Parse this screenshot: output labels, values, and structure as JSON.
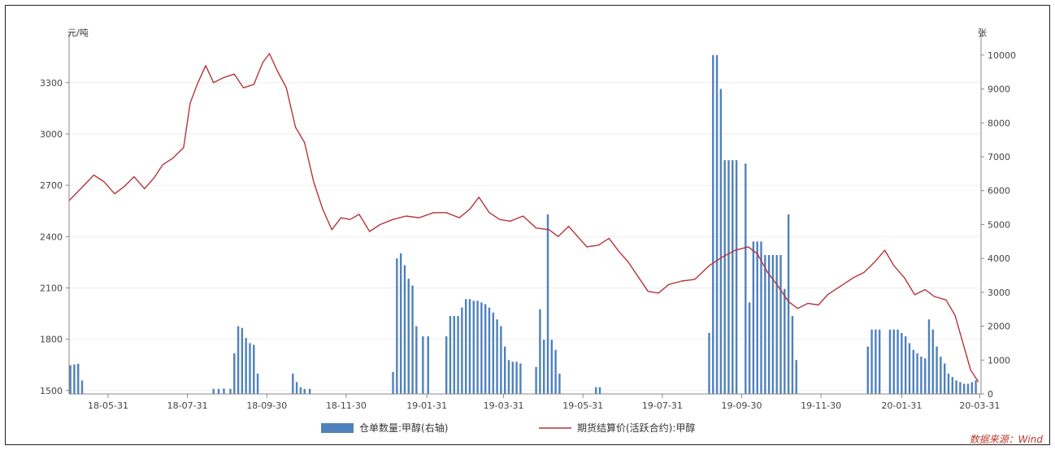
{
  "colors": {
    "price_line": "#b5343b",
    "bars": "#4f81bd",
    "axis": "#888888"
  },
  "chart_data": {
    "type": "bar+line",
    "left_axis": {
      "unit": "元/吨",
      "ticks": [
        1500,
        1800,
        2100,
        2400,
        2700,
        3000,
        3300
      ],
      "min": 1480,
      "max": 3560
    },
    "right_axis": {
      "unit": "张",
      "ticks": [
        0,
        1000,
        2000,
        3000,
        4000,
        5000,
        6000,
        7000,
        8000,
        9000,
        10000
      ],
      "min": 0,
      "max": 10500
    },
    "x_ticks": [
      "18-05-31",
      "18-07-31",
      "18-09-30",
      "18-11-30",
      "19-01-31",
      "19-03-31",
      "19-05-31",
      "19-07-31",
      "19-09-30",
      "19-11-30",
      "20-01-31",
      "20-03-31"
    ],
    "x_range": [
      "2018-05-01",
      "2020-04-01"
    ],
    "legend": [
      {
        "label": "仓单数量:甲醇(右轴)",
        "kind": "bar"
      },
      {
        "label": "期货结算价(活跃合约):甲醇",
        "kind": "line"
      }
    ],
    "source": "数据来源：Wind",
    "line_series": {
      "name": "期货结算价(活跃合约):甲醇",
      "points": [
        [
          "2018-05-01",
          2610
        ],
        [
          "2018-05-10",
          2680
        ],
        [
          "2018-05-20",
          2760
        ],
        [
          "2018-05-28",
          2720
        ],
        [
          "2018-06-05",
          2650
        ],
        [
          "2018-06-12",
          2690
        ],
        [
          "2018-06-20",
          2750
        ],
        [
          "2018-06-28",
          2680
        ],
        [
          "2018-07-05",
          2740
        ],
        [
          "2018-07-12",
          2820
        ],
        [
          "2018-07-20",
          2860
        ],
        [
          "2018-07-28",
          2920
        ],
        [
          "2018-08-02",
          3180
        ],
        [
          "2018-08-08",
          3300
        ],
        [
          "2018-08-14",
          3400
        ],
        [
          "2018-08-20",
          3300
        ],
        [
          "2018-08-28",
          3330
        ],
        [
          "2018-09-05",
          3350
        ],
        [
          "2018-09-12",
          3270
        ],
        [
          "2018-09-20",
          3290
        ],
        [
          "2018-09-27",
          3420
        ],
        [
          "2018-10-02",
          3470
        ],
        [
          "2018-10-08",
          3370
        ],
        [
          "2018-10-15",
          3270
        ],
        [
          "2018-10-22",
          3040
        ],
        [
          "2018-10-29",
          2950
        ],
        [
          "2018-11-05",
          2720
        ],
        [
          "2018-11-12",
          2560
        ],
        [
          "2018-11-19",
          2440
        ],
        [
          "2018-11-26",
          2510
        ],
        [
          "2018-12-03",
          2500
        ],
        [
          "2018-12-10",
          2530
        ],
        [
          "2018-12-18",
          2430
        ],
        [
          "2018-12-26",
          2470
        ],
        [
          "2019-01-05",
          2500
        ],
        [
          "2019-01-15",
          2520
        ],
        [
          "2019-01-25",
          2510
        ],
        [
          "2019-02-05",
          2540
        ],
        [
          "2019-02-15",
          2540
        ],
        [
          "2019-02-25",
          2510
        ],
        [
          "2019-03-05",
          2560
        ],
        [
          "2019-03-12",
          2630
        ],
        [
          "2019-03-20",
          2540
        ],
        [
          "2019-03-28",
          2500
        ],
        [
          "2019-04-05",
          2490
        ],
        [
          "2019-04-15",
          2520
        ],
        [
          "2019-04-25",
          2450
        ],
        [
          "2019-05-05",
          2440
        ],
        [
          "2019-05-12",
          2400
        ],
        [
          "2019-05-20",
          2460
        ],
        [
          "2019-05-27",
          2400
        ],
        [
          "2019-06-03",
          2340
        ],
        [
          "2019-06-12",
          2350
        ],
        [
          "2019-06-20",
          2390
        ],
        [
          "2019-06-28",
          2310
        ],
        [
          "2019-07-05",
          2250
        ],
        [
          "2019-07-12",
          2170
        ],
        [
          "2019-07-20",
          2080
        ],
        [
          "2019-07-28",
          2070
        ],
        [
          "2019-08-05",
          2120
        ],
        [
          "2019-08-15",
          2140
        ],
        [
          "2019-08-25",
          2150
        ],
        [
          "2019-09-05",
          2230
        ],
        [
          "2019-09-15",
          2280
        ],
        [
          "2019-09-25",
          2320
        ],
        [
          "2019-10-05",
          2340
        ],
        [
          "2019-10-12",
          2300
        ],
        [
          "2019-10-20",
          2190
        ],
        [
          "2019-10-28",
          2110
        ],
        [
          "2019-11-05",
          2020
        ],
        [
          "2019-11-12",
          1980
        ],
        [
          "2019-11-20",
          2010
        ],
        [
          "2019-11-28",
          2000
        ],
        [
          "2019-12-05",
          2060
        ],
        [
          "2019-12-15",
          2110
        ],
        [
          "2019-12-25",
          2160
        ],
        [
          "2020-01-02",
          2190
        ],
        [
          "2020-01-10",
          2250
        ],
        [
          "2020-01-18",
          2320
        ],
        [
          "2020-01-25",
          2230
        ],
        [
          "2020-02-02",
          2160
        ],
        [
          "2020-02-10",
          2060
        ],
        [
          "2020-02-18",
          2090
        ],
        [
          "2020-02-25",
          2050
        ],
        [
          "2020-03-05",
          2030
        ],
        [
          "2020-03-12",
          1940
        ],
        [
          "2020-03-18",
          1780
        ],
        [
          "2020-03-24",
          1620
        ],
        [
          "2020-03-30",
          1550
        ]
      ]
    },
    "bar_series": {
      "name": "仓单数量:甲醇(右轴)",
      "points": [
        [
          "2018-05-02",
          850
        ],
        [
          "2018-05-05",
          870
        ],
        [
          "2018-05-08",
          890
        ],
        [
          "2018-05-11",
          400
        ],
        [
          "2018-08-20",
          150
        ],
        [
          "2018-08-24",
          150
        ],
        [
          "2018-08-28",
          160
        ],
        [
          "2018-09-02",
          150
        ],
        [
          "2018-09-05",
          1200
        ],
        [
          "2018-09-08",
          2000
        ],
        [
          "2018-09-11",
          1950
        ],
        [
          "2018-09-14",
          1650
        ],
        [
          "2018-09-17",
          1500
        ],
        [
          "2018-09-20",
          1450
        ],
        [
          "2018-09-23",
          600
        ],
        [
          "2018-10-20",
          600
        ],
        [
          "2018-10-23",
          350
        ],
        [
          "2018-10-26",
          200
        ],
        [
          "2018-10-29",
          150
        ],
        [
          "2018-11-02",
          150
        ],
        [
          "2019-01-05",
          650
        ],
        [
          "2019-01-08",
          4000
        ],
        [
          "2019-01-11",
          4150
        ],
        [
          "2019-01-14",
          3800
        ],
        [
          "2019-01-17",
          3400
        ],
        [
          "2019-01-20",
          3200
        ],
        [
          "2019-01-23",
          2000
        ],
        [
          "2019-01-28",
          1700
        ],
        [
          "2019-02-01",
          1700
        ],
        [
          "2019-02-15",
          1700
        ],
        [
          "2019-02-18",
          2300
        ],
        [
          "2019-02-21",
          2300
        ],
        [
          "2019-02-24",
          2300
        ],
        [
          "2019-02-27",
          2550
        ],
        [
          "2019-03-02",
          2800
        ],
        [
          "2019-03-05",
          2800
        ],
        [
          "2019-03-08",
          2750
        ],
        [
          "2019-03-11",
          2750
        ],
        [
          "2019-03-14",
          2700
        ],
        [
          "2019-03-17",
          2650
        ],
        [
          "2019-03-20",
          2550
        ],
        [
          "2019-03-23",
          2400
        ],
        [
          "2019-03-26",
          2200
        ],
        [
          "2019-03-29",
          2000
        ],
        [
          "2019-04-01",
          1400
        ],
        [
          "2019-04-04",
          1000
        ],
        [
          "2019-04-07",
          950
        ],
        [
          "2019-04-10",
          950
        ],
        [
          "2019-04-13",
          900
        ],
        [
          "2019-04-25",
          800
        ],
        [
          "2019-04-28",
          2500
        ],
        [
          "2019-05-01",
          1600
        ],
        [
          "2019-05-04",
          5300
        ],
        [
          "2019-05-07",
          1600
        ],
        [
          "2019-05-10",
          1300
        ],
        [
          "2019-05-13",
          600
        ],
        [
          "2019-06-10",
          200
        ],
        [
          "2019-06-13",
          200
        ],
        [
          "2019-09-05",
          1800
        ],
        [
          "2019-09-08",
          10000
        ],
        [
          "2019-09-11",
          10000
        ],
        [
          "2019-09-14",
          9000
        ],
        [
          "2019-09-17",
          6900
        ],
        [
          "2019-09-20",
          6900
        ],
        [
          "2019-09-23",
          6900
        ],
        [
          "2019-09-26",
          6900
        ],
        [
          "2019-10-03",
          6800
        ],
        [
          "2019-10-06",
          2700
        ],
        [
          "2019-10-09",
          4500
        ],
        [
          "2019-10-12",
          4500
        ],
        [
          "2019-10-15",
          4500
        ],
        [
          "2019-10-18",
          4100
        ],
        [
          "2019-10-21",
          4100
        ],
        [
          "2019-10-24",
          4100
        ],
        [
          "2019-10-27",
          4100
        ],
        [
          "2019-10-30",
          4100
        ],
        [
          "2019-11-02",
          3100
        ],
        [
          "2019-11-05",
          5300
        ],
        [
          "2019-11-08",
          2300
        ],
        [
          "2019-11-11",
          1000
        ],
        [
          "2020-01-05",
          1400
        ],
        [
          "2020-01-08",
          1900
        ],
        [
          "2020-01-11",
          1900
        ],
        [
          "2020-01-14",
          1900
        ],
        [
          "2020-01-22",
          1900
        ],
        [
          "2020-01-25",
          1900
        ],
        [
          "2020-01-28",
          1900
        ],
        [
          "2020-01-31",
          1800
        ],
        [
          "2020-02-03",
          1700
        ],
        [
          "2020-02-06",
          1500
        ],
        [
          "2020-02-09",
          1300
        ],
        [
          "2020-02-12",
          1200
        ],
        [
          "2020-02-15",
          1100
        ],
        [
          "2020-02-18",
          1050
        ],
        [
          "2020-02-21",
          2200
        ],
        [
          "2020-02-24",
          1900
        ],
        [
          "2020-02-27",
          1400
        ],
        [
          "2020-03-01",
          1100
        ],
        [
          "2020-03-04",
          900
        ],
        [
          "2020-03-07",
          600
        ],
        [
          "2020-03-10",
          500
        ],
        [
          "2020-03-13",
          400
        ],
        [
          "2020-03-16",
          350
        ],
        [
          "2020-03-19",
          300
        ],
        [
          "2020-03-22",
          300
        ],
        [
          "2020-03-25",
          350
        ],
        [
          "2020-03-28",
          400
        ]
      ]
    }
  }
}
